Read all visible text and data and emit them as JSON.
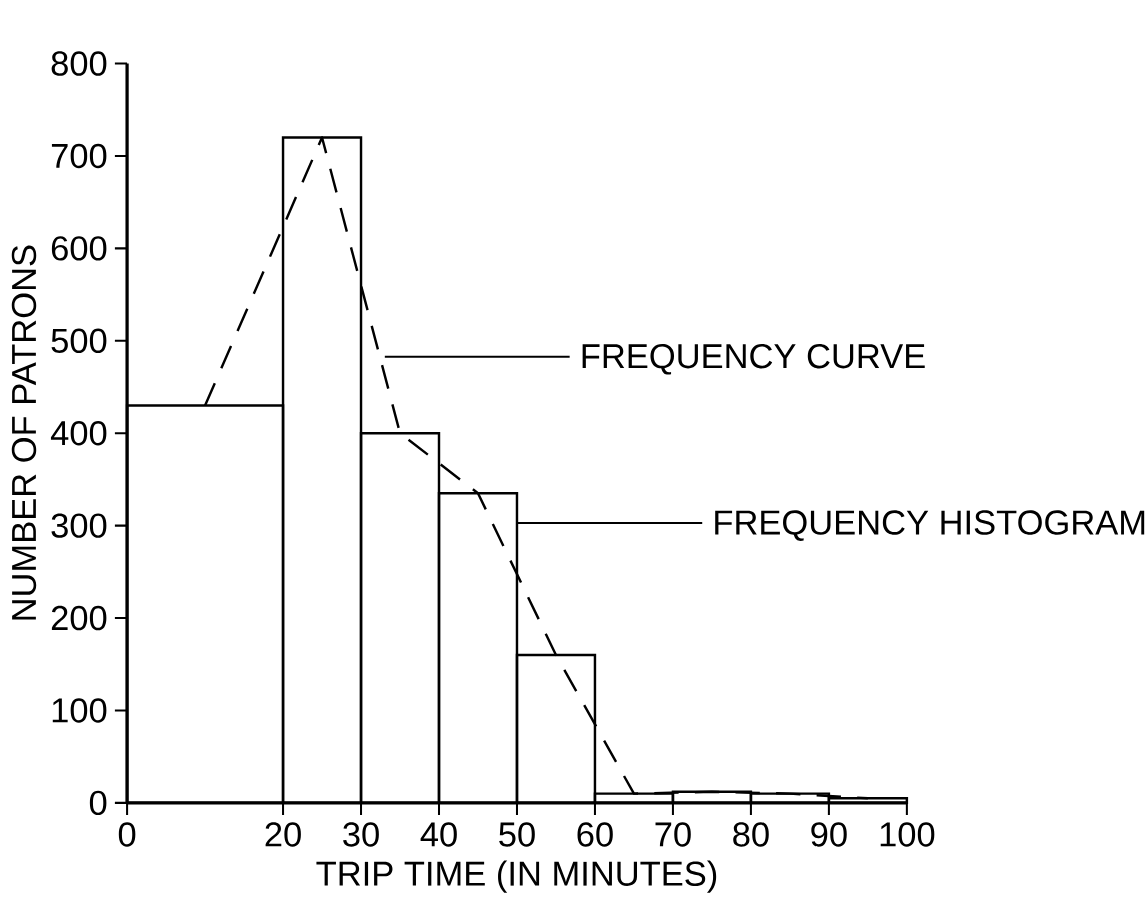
{
  "chart_data": {
    "type": "histogram",
    "xlabel": "TRIP TIME (IN MINUTES)",
    "ylabel": "NUMBER OF PATRONS",
    "bins": [
      0,
      20,
      30,
      40,
      50,
      60,
      70,
      80,
      90,
      100
    ],
    "series": [
      {
        "color": "#000000",
        "values": [
          430,
          720,
          400,
          335,
          160,
          10,
          12,
          10,
          5
        ]
      },
      {
        "type": "line",
        "color": "#000000",
        "line_style": "dashed",
        "x": [
          10,
          25,
          35,
          45,
          55,
          65,
          75,
          85,
          95
        ],
        "values": [
          430,
          720,
          400,
          335,
          160,
          10,
          12,
          10,
          5
        ]
      }
    ],
    "xlim": [
      0,
      100
    ],
    "ylim": [
      0,
      800
    ],
    "xticks": [
      0,
      20,
      30,
      40,
      50,
      60,
      70,
      80,
      90,
      100
    ],
    "yticks": [
      0,
      100,
      200,
      300,
      400,
      500,
      600,
      700,
      800
    ],
    "grid": false,
    "marker": "none",
    "annotations": [
      {
        "text": "FREQUENCY CURVE",
        "x": 33,
        "y": 480
      },
      {
        "text": "FREQUENCY HISTOGRAM",
        "x": 50,
        "y": 300
      }
    ]
  }
}
